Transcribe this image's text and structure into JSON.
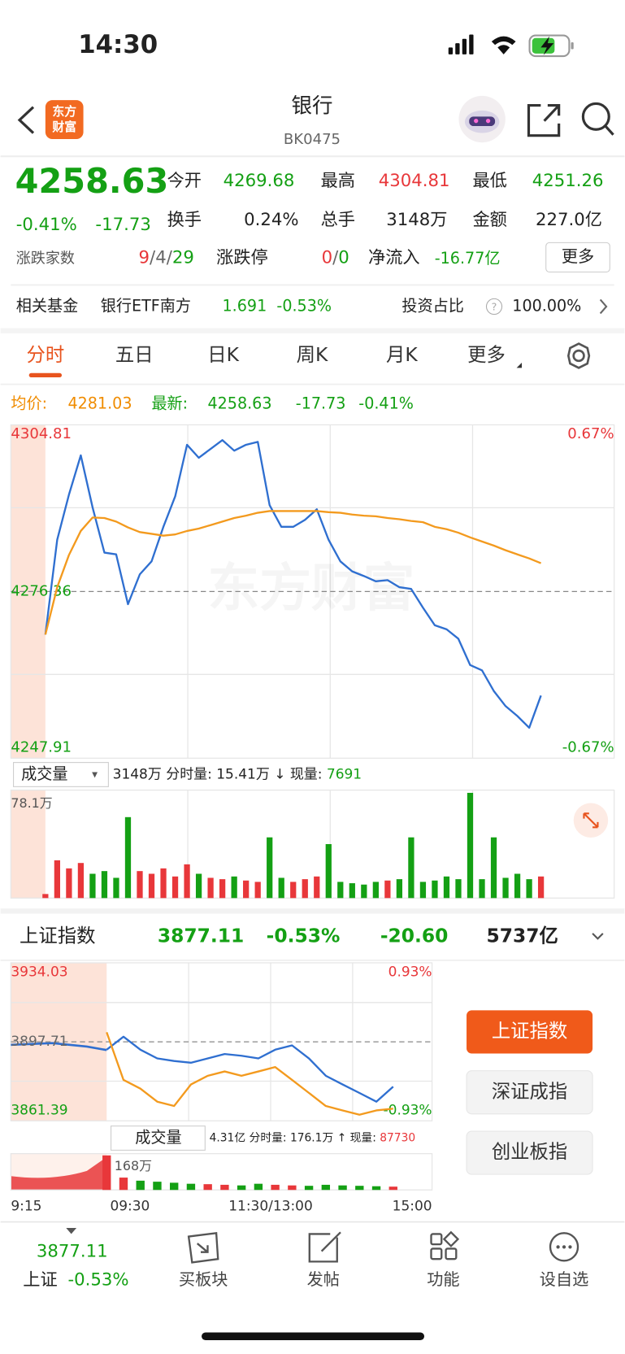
{
  "status_bar": {
    "time": "14:30"
  },
  "header": {
    "logo_lines": [
      "东方",
      "财富"
    ],
    "title": "银行",
    "code": "BK0475"
  },
  "quote": {
    "price": "4258.63",
    "change_pct": "-0.41%",
    "change": "-17.73",
    "open_label": "今开",
    "open": "4269.68",
    "high_label": "最高",
    "high": "4304.81",
    "low_label": "最低",
    "low": "4251.26",
    "turnover_label": "换手",
    "turnover": "0.24%",
    "volume_label": "总手",
    "volume": "3148万",
    "amount_label": "金额",
    "amount": "227.0亿",
    "breadth_label": "涨跌家数",
    "breadth_parts": [
      "9",
      "/",
      "4",
      "/",
      "29"
    ],
    "limit_label": "涨跌停",
    "limit_parts": [
      "0",
      "/",
      "0"
    ],
    "inflow_label": "净流入",
    "inflow": "-16.77亿",
    "more_button": "更多"
  },
  "fund": {
    "label": "相关基金",
    "name": "银行ETF南方",
    "price": "1.691",
    "change": "-0.53%",
    "ratio_label": "投资占比",
    "ratio_help": "?",
    "ratio": "100.00%"
  },
  "tabs": [
    "分时",
    "五日",
    "日K",
    "周K",
    "月K",
    "更多"
  ],
  "info_row": {
    "avg_label": "均价:",
    "avg": "4281.03",
    "latest_label": "最新:",
    "latest": "4258.63",
    "change": "-17.73",
    "pct": "-0.41%"
  },
  "intraday_chart": {
    "type": "line",
    "watermark": "东方财富",
    "ylim": [
      4247.91,
      4304.81
    ],
    "yticks": [
      4304.81,
      4276.36,
      4247.91
    ],
    "y2lim": [
      -0.67,
      0.67
    ],
    "y2ticks": [
      {
        "value": 0.67,
        "label": "0.67%"
      },
      {
        "value": -0.67,
        "label": "-0.67%"
      }
    ],
    "series": [
      {
        "color": "#2f6fd0",
        "values": [
          4269.0,
          4285.2,
          4292.9,
          4299.6,
          4290.7,
          4283.0,
          4282.7,
          4274.2,
          4279.3,
          4281.5,
          4287.4,
          4292.6,
          4301.4,
          4299.2,
          4300.7,
          4302.2,
          4300.4,
          4301.4,
          4301.9,
          4291.1,
          4287.4,
          4287.4,
          4288.6,
          4290.4,
          4285.2,
          4281.5,
          4279.8,
          4279.0,
          4278.1,
          4278.3,
          4277.1,
          4276.8,
          4273.6,
          4270.6,
          4269.9,
          4268.3,
          4263.8,
          4262.9,
          4259.4,
          4256.8,
          4255.1,
          4253.1,
          4258.6
        ]
      },
      {
        "color": "#f39a1e",
        "values": [
          4269.0,
          4277.1,
          4282.6,
          4286.7,
          4289.0,
          4288.9,
          4288.3,
          4287.3,
          4286.5,
          4286.2,
          4285.9,
          4286.1,
          4286.7,
          4287.1,
          4287.7,
          4288.3,
          4288.9,
          4289.3,
          4289.8,
          4290.1,
          4290.1,
          4290.1,
          4290.1,
          4290.1,
          4289.9,
          4289.8,
          4289.5,
          4289.3,
          4289.2,
          4288.9,
          4288.7,
          4288.4,
          4288.2,
          4287.4,
          4287.0,
          4286.4,
          4285.6,
          4284.9,
          4284.2,
          4283.4,
          4282.7,
          4282.0,
          4281.2
        ]
      }
    ]
  },
  "volume_header": {
    "selector": "成交量",
    "selector_arrow": "▾",
    "total": "3148万",
    "minute_label": "分时量:",
    "minute": "15.41万",
    "arrow": "↓",
    "current_label": "现量:",
    "current": "7691"
  },
  "volume_chart": {
    "type": "bar",
    "ylim": [
      0,
      78.1
    ],
    "yticks": [
      {
        "value": 78.1,
        "label": "78.1万"
      }
    ],
    "up_color": "#e8373a",
    "down_color": "#14a014",
    "values": [
      3,
      28,
      22,
      26,
      18,
      20,
      15,
      60,
      20,
      18,
      22,
      16,
      25,
      18,
      15,
      14,
      16,
      13,
      12,
      45,
      15,
      12,
      14,
      16,
      40,
      12,
      11,
      10,
      12,
      13,
      14,
      45,
      12,
      13,
      16,
      14,
      78,
      14,
      45,
      15,
      18,
      14,
      16
    ]
  },
  "index_panel": {
    "name": "上证指数",
    "price": "3877.11",
    "pct": "-0.53%",
    "change": "-20.60",
    "amount": "5737亿",
    "chart": {
      "type": "line",
      "ylim": [
        3861.39,
        3934.03
      ],
      "yticks": [
        3934.03,
        3897.71,
        3861.39
      ],
      "y2lim": [
        -0.93,
        0.93
      ],
      "y2ticks": [
        {
          "value": 0.93,
          "label": "0.93%"
        },
        {
          "value": -0.93,
          "label": "-0.93%"
        }
      ],
      "series": [
        {
          "color": "#2f6fd0",
          "values": [
            3894.1,
            3900.1,
            3894.1,
            3890.1,
            3888.9,
            3888.1,
            3890.1,
            3892.1,
            3891.3,
            3890.1,
            3894.1,
            3896.1,
            3890.1,
            3882.1,
            3878.1,
            3874.2,
            3870.2,
            3877.1
          ]
        },
        {
          "color": "#f39a1e",
          "values": [
            3902.1,
            3880.2,
            3876.2,
            3870.2,
            3868.2,
            3878.1,
            3882.1,
            3884.1,
            3882.1,
            3884.1,
            3886.1,
            3880.2,
            3874.2,
            3868.2,
            3866.2,
            3864.2,
            3866.2,
            3867.0
          ]
        }
      ]
    },
    "volume_header": {
      "selector": "成交量",
      "total": "4.31亿",
      "minute_label": "分时量:",
      "minute": "176.1万",
      "arrow": "↑",
      "current_label": "现量:",
      "current": "87730"
    },
    "volume": {
      "type": "bar",
      "ylim": [
        0,
        168
      ],
      "yticks": [
        {
          "value": 168,
          "label": "168万"
        }
      ],
      "values": [
        168,
        60,
        45,
        40,
        35,
        30,
        28,
        25,
        22,
        30,
        25,
        22,
        20,
        25,
        22,
        20,
        18,
        16
      ]
    },
    "time_labels": [
      "9:15",
      "09:30",
      "11:30/13:00",
      "15:00"
    ],
    "buttons": [
      "上证指数",
      "深证成指",
      "创业板指"
    ]
  },
  "bottom_nav": {
    "index_price": "3877.11",
    "index_name": "上证",
    "index_pct": "-0.53%",
    "items": [
      "买板块",
      "发帖",
      "功能",
      "设自选"
    ]
  }
}
